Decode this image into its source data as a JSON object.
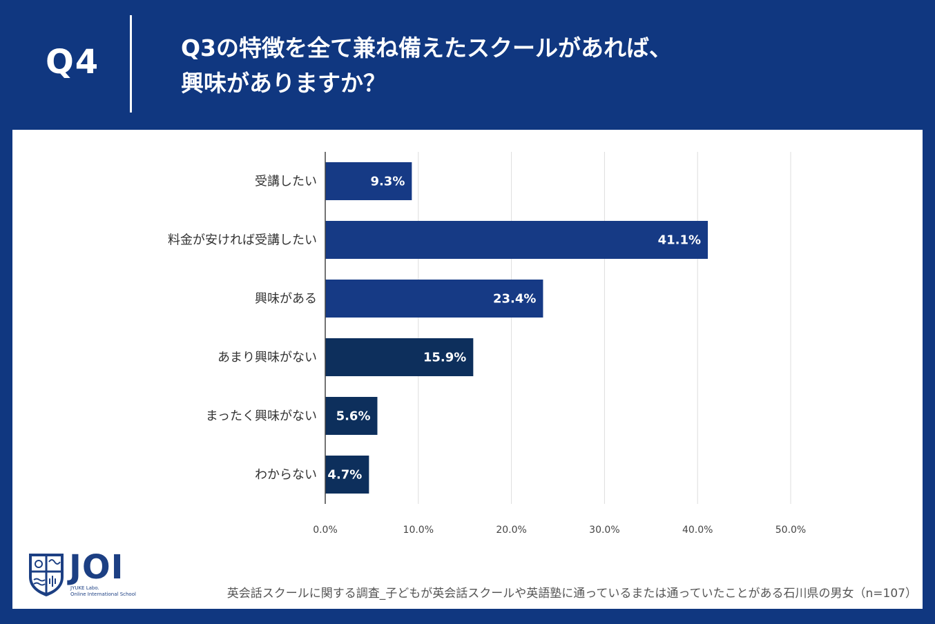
{
  "header": {
    "question_number": "Q4",
    "question_line1": "Q3の特徴を全て兼ね備えたスクールがあれば、",
    "question_line2": "興味がありますか？"
  },
  "chart_data": {
    "type": "bar",
    "orientation": "horizontal",
    "categories": [
      "受講したい",
      "料金が安ければ受講したい",
      "興味がある",
      "あまり興味がない",
      "まったく興味がない",
      "わからない"
    ],
    "values": [
      9.3,
      41.1,
      23.4,
      15.9,
      5.6,
      4.7
    ],
    "value_labels": [
      "9.3%",
      "41.1%",
      "23.4%",
      "15.9%",
      "5.6%",
      "4.7%"
    ],
    "colors": [
      "#163a85",
      "#163a85",
      "#163a85",
      "#0d2f5c",
      "#0d2f5c",
      "#0d2f5c"
    ],
    "xlim": [
      0,
      50
    ],
    "x_ticks": [
      "0.0%",
      "10.0%",
      "20.0%",
      "30.0%",
      "40.0%",
      "50.0%"
    ],
    "grid": true,
    "title": "",
    "xlabel": "",
    "ylabel": ""
  },
  "logo": {
    "word": "JOI",
    "sub1": "JYUKE Labo.",
    "sub2": "Online International School"
  },
  "footnote": "英会話スクールに関する調査_子どもが英会話スクールや英語塾に通っているまたは通っていたことがある石川県の男女（n=107）",
  "colors": {
    "background": "#103780",
    "panel": "#ffffff",
    "grid": "#dddddd"
  }
}
